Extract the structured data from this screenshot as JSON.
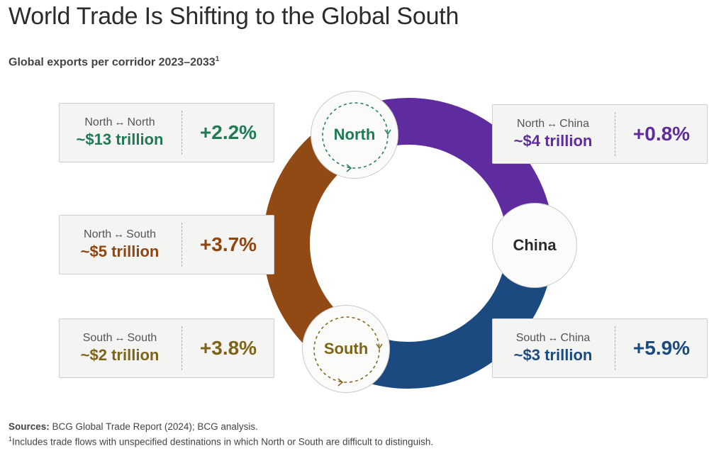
{
  "title": "World Trade Is Shifting to the Global South",
  "subtitle": "Global exports per corridor 2023–2033",
  "subtitle_sup": "1",
  "colors": {
    "north_north": "#1f7a55",
    "north_south": "#8e4612",
    "south_south": "#7d6418",
    "north_china": "#5f2ca0",
    "south_china": "#1b4a80",
    "ring_north_south": "#914a14",
    "ring_north_china": "#5f2ca0",
    "ring_south_china": "#1b4a80"
  },
  "nodes": {
    "north": "North",
    "south": "South",
    "china": "China"
  },
  "arrow_glyph": "↔",
  "chart_data": {
    "type": "network-diagram",
    "title": "World Trade Is Shifting to the Global South",
    "subtitle": "Global exports per corridor 2023–2033",
    "nodes": [
      "North",
      "China",
      "South"
    ],
    "corridors": [
      {
        "from": "North",
        "to": "North",
        "value_label": "~$13 trillion",
        "value_trillion": 13,
        "growth_label": "+2.2%",
        "growth_pct": 2.2
      },
      {
        "from": "North",
        "to": "South",
        "value_label": "~$5 trillion",
        "value_trillion": 5,
        "growth_label": "+3.7%",
        "growth_pct": 3.7
      },
      {
        "from": "South",
        "to": "South",
        "value_label": "~$2 trillion",
        "value_trillion": 2,
        "growth_label": "+3.8%",
        "growth_pct": 3.8
      },
      {
        "from": "North",
        "to": "China",
        "value_label": "~$4 trillion",
        "value_trillion": 4,
        "growth_label": "+0.8%",
        "growth_pct": 0.8
      },
      {
        "from": "South",
        "to": "China",
        "value_label": "~$3 trillion",
        "value_trillion": 3,
        "growth_label": "+5.9%",
        "growth_pct": 5.9
      }
    ]
  },
  "sources_label": "Sources:",
  "sources_text": " BCG Global Trade Report (2024); BCG analysis.",
  "footnote_mark": "1",
  "footnote_text": "Includes trade flows with unspecified destinations in which North or South are difficult to distinguish."
}
